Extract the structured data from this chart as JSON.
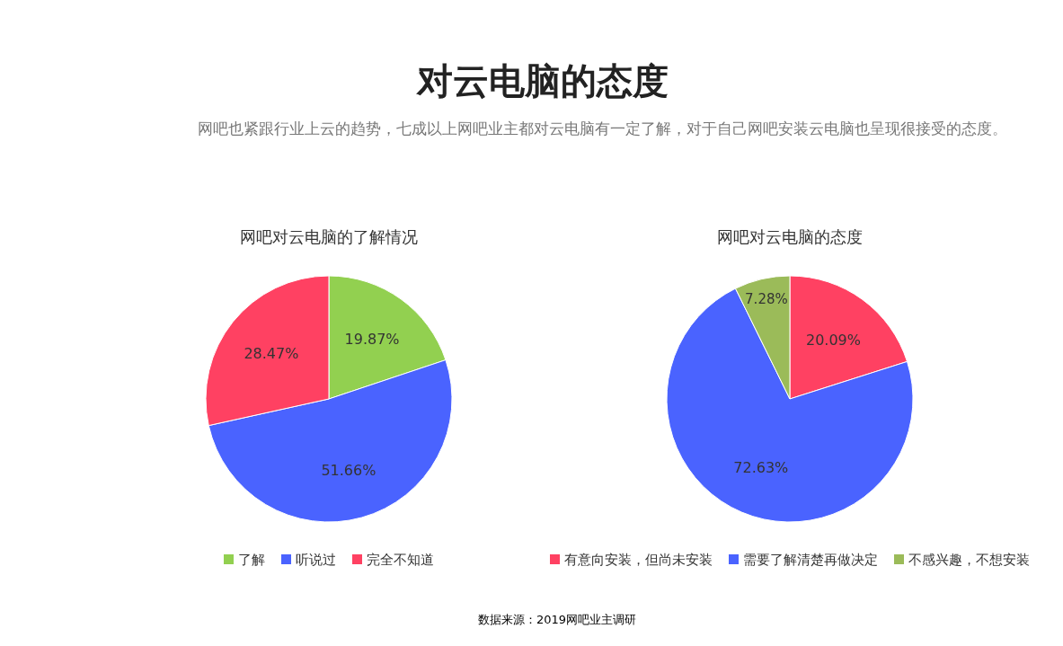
{
  "chart_data": [
    {
      "type": "other",
      "title": "对云电脑的态度",
      "subtitle": "网吧也紧跟行业上云的趋势，七成以上网吧业主都对云电脑有一定了解，对于自己网吧安装云电脑也呈现很接受的态度。",
      "annotations": [
        "数据来源：2019网吧业主调研"
      ]
    },
    {
      "type": "pie",
      "title": "网吧对云电脑的了解情况",
      "categories": [
        "了解",
        "听说过",
        "完全不知道"
      ],
      "values": [
        19.87,
        51.66,
        28.47
      ],
      "value_labels": [
        "19.87%",
        "51.66%",
        "28.47%"
      ],
      "colors": [
        "#92d050",
        "#4a63ff",
        "#ff4162"
      ],
      "legend": "bottom"
    },
    {
      "type": "pie",
      "title": "网吧对云电脑的态度",
      "categories": [
        "有意向安装，但尚未安装",
        "需要了解清楚再做决定",
        "不感兴趣，不想安装"
      ],
      "values": [
        20.09,
        72.63,
        7.28
      ],
      "value_labels": [
        "20.09%",
        "72.63%",
        "7.28%"
      ],
      "colors": [
        "#ff4162",
        "#4a63ff",
        "#9bbb59"
      ],
      "legend": "bottom"
    }
  ]
}
